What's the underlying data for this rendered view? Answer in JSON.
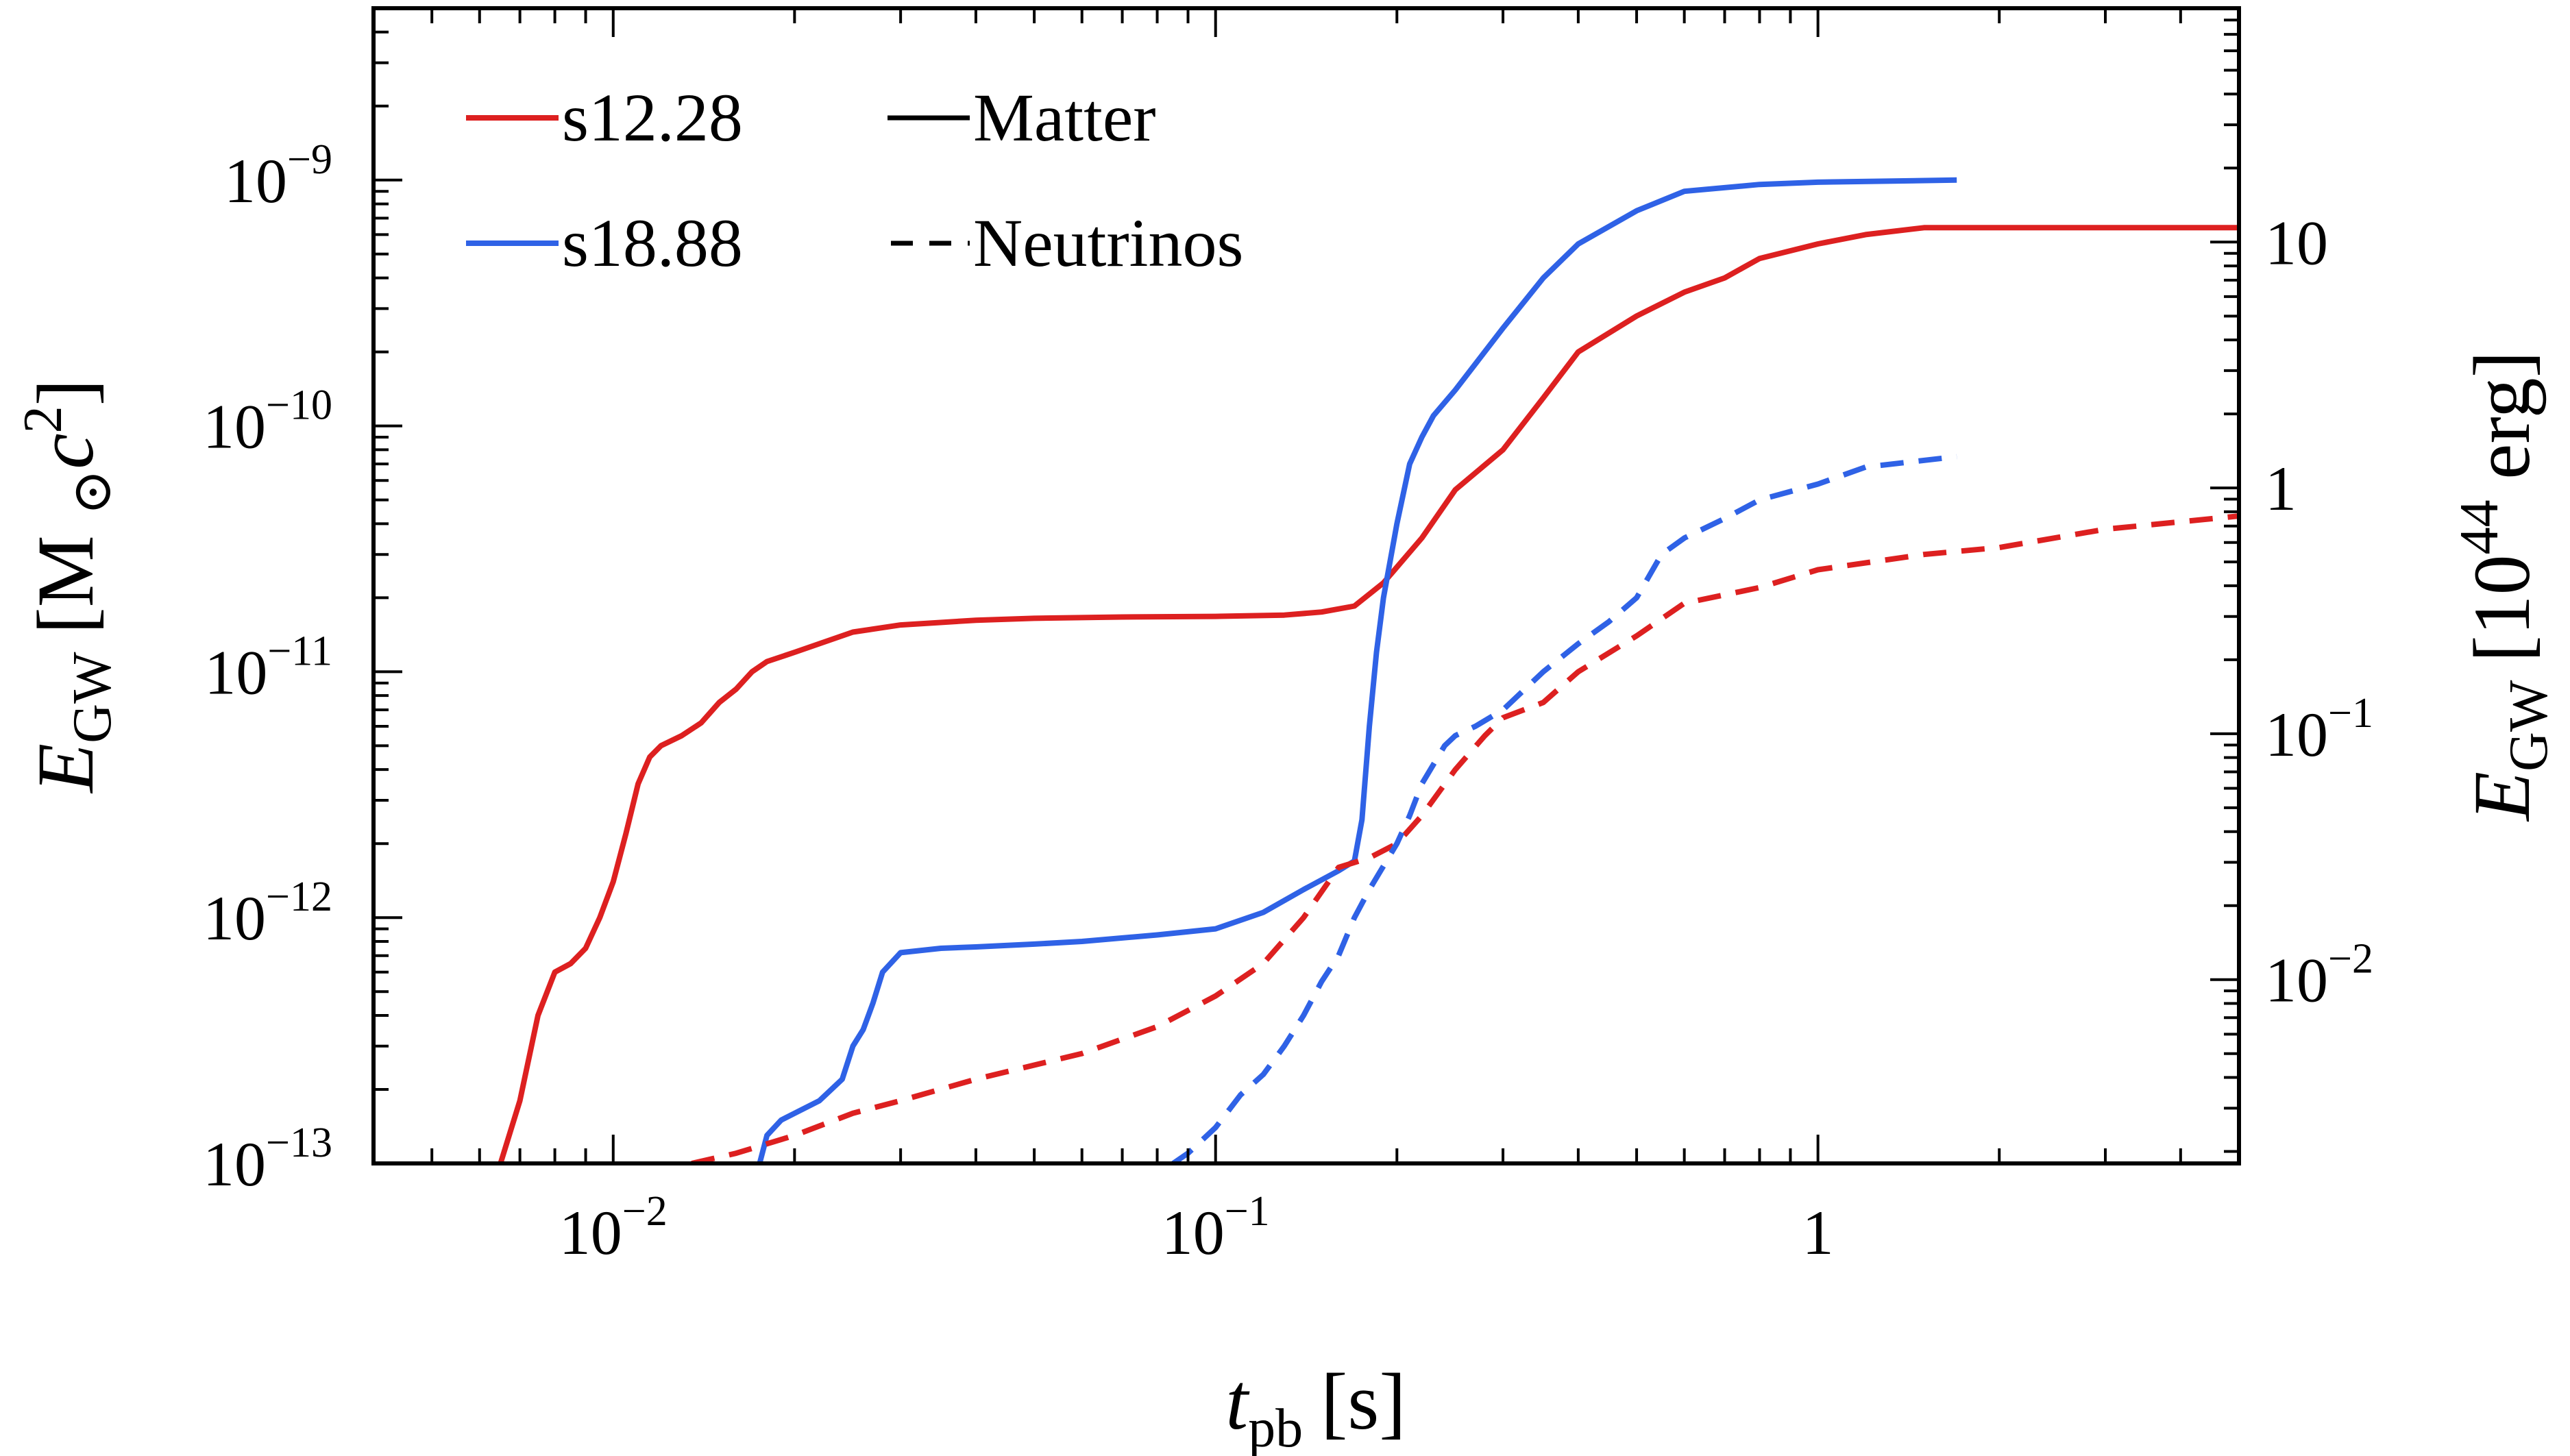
{
  "chart_data": {
    "type": "line",
    "x_scale": "log",
    "y_scale": "log",
    "xlim": [
      0.004,
      5
    ],
    "ylim": [
      1e-13,
      5e-09
    ],
    "right_axis_conversion": "E[1e44 erg] = E[M_sun c^2] * 1.7876e10",
    "xlabel": {
      "main": "t",
      "sub": "pb",
      "units": "[s]"
    },
    "ylabel": {
      "main": "E",
      "sub": "GW",
      "units_pre": "[M",
      "units_sub": "⊙",
      "units_c": "c",
      "units_sup": "2",
      "units_post": "]"
    },
    "y2label": {
      "main": "E",
      "sub": "GW",
      "units_pre": "[10",
      "units_sup": "44",
      "units_post": " erg]"
    },
    "x_ticks": [
      {
        "value": 0.01,
        "base": "10",
        "exp": "−2"
      },
      {
        "value": 0.1,
        "base": "10",
        "exp": "−1"
      },
      {
        "value": 1,
        "base": "1",
        "exp": ""
      }
    ],
    "y_ticks": [
      {
        "value": 1e-13,
        "base": "10",
        "exp": "−13"
      },
      {
        "value": 1e-12,
        "base": "10",
        "exp": "−12"
      },
      {
        "value": 1e-11,
        "base": "10",
        "exp": "−11"
      },
      {
        "value": 1e-10,
        "base": "10",
        "exp": "−10"
      },
      {
        "value": 1e-09,
        "base": "10",
        "exp": "−9"
      }
    ],
    "y2_ticks": [
      {
        "value": 0.01,
        "base": "10",
        "exp": "−2"
      },
      {
        "value": 0.1,
        "base": "10",
        "exp": "−1"
      },
      {
        "value": 1,
        "base": "1",
        "exp": ""
      },
      {
        "value": 10,
        "base": "10",
        "exp": ""
      }
    ],
    "legend": {
      "models": [
        {
          "label": "s12.28",
          "color": "#dd2020"
        },
        {
          "label": "s18.88",
          "color": "#2f62e6"
        }
      ],
      "styles": [
        {
          "label": "Matter",
          "dash": "solid"
        },
        {
          "label": "Neutrinos",
          "dash": "dashed"
        }
      ]
    },
    "series": [
      {
        "name": "s12.28 Matter",
        "model": "s12.28",
        "component": "Matter",
        "color": "#dd2020",
        "dash": "solid",
        "x": [
          0.0065,
          0.007,
          0.0075,
          0.008,
          0.0085,
          0.009,
          0.0095,
          0.01,
          0.0105,
          0.011,
          0.0115,
          0.012,
          0.013,
          0.014,
          0.015,
          0.016,
          0.017,
          0.018,
          0.02,
          0.025,
          0.03,
          0.04,
          0.05,
          0.07,
          0.1,
          0.13,
          0.15,
          0.17,
          0.19,
          0.22,
          0.25,
          0.3,
          0.35,
          0.4,
          0.5,
          0.6,
          0.7,
          0.8,
          1.0,
          1.2,
          1.5,
          5.0
        ],
        "y": [
          1e-13,
          1.8e-13,
          4e-13,
          6e-13,
          6.5e-13,
          7.5e-13,
          1e-12,
          1.4e-12,
          2.2e-12,
          3.5e-12,
          4.5e-12,
          5e-12,
          5.5e-12,
          6.2e-12,
          7.5e-12,
          8.5e-12,
          1e-11,
          1.1e-11,
          1.2e-11,
          1.45e-11,
          1.55e-11,
          1.62e-11,
          1.65e-11,
          1.67e-11,
          1.68e-11,
          1.7e-11,
          1.75e-11,
          1.85e-11,
          2.3e-11,
          3.5e-11,
          5.5e-11,
          8e-11,
          1.3e-10,
          2e-10,
          2.8e-10,
          3.5e-10,
          4e-10,
          4.8e-10,
          5.5e-10,
          6e-10,
          6.4e-10,
          6.4e-10
        ]
      },
      {
        "name": "s18.88 Matter",
        "model": "s18.88",
        "component": "Matter",
        "color": "#2f62e6",
        "dash": "solid",
        "x": [
          0.0175,
          0.018,
          0.019,
          0.02,
          0.022,
          0.024,
          0.025,
          0.026,
          0.027,
          0.028,
          0.03,
          0.035,
          0.04,
          0.05,
          0.06,
          0.08,
          0.1,
          0.12,
          0.14,
          0.16,
          0.17,
          0.175,
          0.18,
          0.185,
          0.19,
          0.2,
          0.21,
          0.22,
          0.23,
          0.25,
          0.3,
          0.35,
          0.4,
          0.5,
          0.6,
          0.8,
          1.0,
          1.7
        ],
        "y": [
          1e-13,
          1.3e-13,
          1.5e-13,
          1.6e-13,
          1.8e-13,
          2.2e-13,
          3e-13,
          3.5e-13,
          4.5e-13,
          6e-13,
          7.2e-13,
          7.5e-13,
          7.6e-13,
          7.8e-13,
          8e-13,
          8.5e-13,
          9e-13,
          1.05e-12,
          1.3e-12,
          1.55e-12,
          1.7e-12,
          2.5e-12,
          6e-12,
          1.2e-11,
          2e-11,
          4e-11,
          7e-11,
          9e-11,
          1.1e-10,
          1.4e-10,
          2.5e-10,
          4e-10,
          5.5e-10,
          7.5e-10,
          9e-10,
          9.6e-10,
          9.8e-10,
          1e-09
        ]
      },
      {
        "name": "s12.28 Neutrinos",
        "model": "s12.28",
        "component": "Neutrinos",
        "color": "#dd2020",
        "dash": "dashed",
        "x": [
          0.0135,
          0.016,
          0.02,
          0.025,
          0.03,
          0.04,
          0.06,
          0.08,
          0.1,
          0.12,
          0.14,
          0.16,
          0.18,
          0.2,
          0.22,
          0.25,
          0.28,
          0.3,
          0.35,
          0.4,
          0.5,
          0.6,
          0.8,
          1.0,
          1.5,
          2.0,
          3.0,
          5.0
        ],
        "y": [
          1e-13,
          1.1e-13,
          1.3e-13,
          1.6e-13,
          1.8e-13,
          2.2e-13,
          2.8e-13,
          3.6e-13,
          4.8e-13,
          6.5e-13,
          1e-12,
          1.6e-12,
          1.75e-12,
          2e-12,
          2.6e-12,
          4e-12,
          5.5e-12,
          6.5e-12,
          7.5e-12,
          1e-11,
          1.4e-11,
          1.9e-11,
          2.2e-11,
          2.6e-11,
          3e-11,
          3.2e-11,
          3.8e-11,
          4.3e-11
        ]
      },
      {
        "name": "s18.88 Neutrinos",
        "model": "s18.88",
        "component": "Neutrinos",
        "color": "#2f62e6",
        "dash": "dashed",
        "x": [
          0.085,
          0.09,
          0.1,
          0.11,
          0.12,
          0.13,
          0.14,
          0.15,
          0.16,
          0.17,
          0.18,
          0.2,
          0.21,
          0.22,
          0.24,
          0.25,
          0.27,
          0.3,
          0.35,
          0.4,
          0.45,
          0.5,
          0.55,
          0.6,
          0.7,
          0.8,
          1.0,
          1.2,
          1.7
        ],
        "y": [
          1e-13,
          1.1e-13,
          1.4e-13,
          1.9e-13,
          2.3e-13,
          3e-13,
          4e-13,
          5.5e-13,
          7e-13,
          1e-12,
          1.3e-12,
          2e-12,
          2.6e-12,
          3.5e-12,
          5e-12,
          5.5e-12,
          6e-12,
          7e-12,
          1e-11,
          1.3e-11,
          1.6e-11,
          2e-11,
          3e-11,
          3.5e-11,
          4.2e-11,
          5e-11,
          5.8e-11,
          6.8e-11,
          7.5e-11
        ]
      }
    ]
  }
}
